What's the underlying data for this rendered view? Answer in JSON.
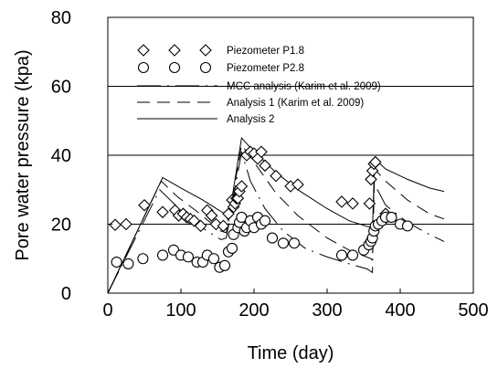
{
  "chart_data": {
    "type": "scatter",
    "title": "",
    "xlabel": "Time (day)",
    "ylabel": "Pore water pressure (kpa)",
    "xlim": [
      0,
      500
    ],
    "ylim": [
      0,
      80
    ],
    "xticks": [
      0,
      100,
      200,
      300,
      400,
      500
    ],
    "yticks": [
      0,
      20,
      40,
      60,
      80
    ],
    "grid": "horizontal lines at 20, 40, 60",
    "legend_position": "top-left",
    "series": [
      {
        "name": "Piezometer P1.8",
        "kind": "markers",
        "marker": "diamond",
        "x": [
          10,
          25,
          50,
          75,
          92,
          97,
          103,
          108,
          113,
          118,
          127,
          136,
          142,
          148,
          158,
          165,
          170,
          172,
          174,
          176,
          178,
          180,
          183,
          190,
          195,
          200,
          205,
          210,
          215,
          230,
          250,
          260,
          320,
          335,
          358,
          360,
          362,
          364,
          366,
          380
        ],
        "y": [
          19.8,
          20,
          25.5,
          23.5,
          24,
          22.5,
          23,
          22,
          21.5,
          21,
          19.5,
          24,
          22.5,
          20,
          19.5,
          23,
          27,
          25,
          26,
          27.5,
          27.5,
          29.5,
          31,
          40,
          41,
          40.5,
          39,
          41,
          37,
          34,
          31,
          31.5,
          26.5,
          26,
          26,
          33,
          35.5,
          37.5,
          38,
          23
        ]
      },
      {
        "name": "Piezometer P2.8",
        "kind": "markers",
        "marker": "circle",
        "x": [
          12,
          28,
          48,
          75,
          90,
          100,
          110,
          122,
          130,
          136,
          145,
          153,
          160,
          165,
          170,
          172,
          178,
          180,
          183,
          187,
          190,
          195,
          200,
          205,
          210,
          215,
          225,
          240,
          255,
          320,
          335,
          350,
          357,
          360,
          362,
          364,
          366,
          370,
          375,
          380,
          388,
          400,
          410
        ],
        "y": [
          9,
          8.5,
          10,
          11,
          12.5,
          11,
          10.5,
          9,
          9,
          11,
          10,
          7.5,
          8,
          12,
          13,
          17,
          19,
          20.5,
          22,
          18,
          19,
          21,
          19,
          22,
          20,
          21,
          16,
          14.5,
          14.5,
          11,
          11,
          12.5,
          14,
          15,
          16,
          18,
          19.5,
          20,
          21,
          22,
          22,
          20,
          19.5
        ]
      },
      {
        "name": "MCC analysis (Karim et al. 2009)",
        "kind": "line",
        "dash": "longdash-dot",
        "x": [
          0,
          71,
          100,
          125,
          155,
          162,
          183,
          195,
          215,
          240,
          270,
          300,
          330,
          355,
          362,
          364,
          380,
          410,
          440,
          460
        ],
        "y": [
          0,
          30,
          24,
          19.5,
          15.5,
          16,
          41,
          32.5,
          24.5,
          18,
          13,
          10.5,
          8.5,
          7,
          6,
          32,
          25.5,
          20.5,
          17,
          15
        ]
      },
      {
        "name": "Analysis 1 (Karim et al. 2009)",
        "kind": "line",
        "dash": "dashed",
        "x": [
          0,
          73,
          95,
          120,
          155,
          162,
          183,
          200,
          230,
          260,
          300,
          330,
          360,
          362,
          365,
          380,
          410,
          440,
          460
        ],
        "y": [
          0,
          32.5,
          28,
          24,
          18,
          17.5,
          43,
          38,
          29,
          22.5,
          16,
          12.5,
          10,
          9.5,
          36,
          32.5,
          27,
          23,
          21.5
        ]
      },
      {
        "name": "Analysis 2",
        "kind": "line",
        "dash": "solid",
        "x": [
          0,
          75,
          100,
          130,
          160,
          165,
          183,
          200,
          230,
          260,
          300,
          330,
          360,
          362,
          365,
          380,
          410,
          440,
          460
        ],
        "y": [
          0,
          33.5,
          30.5,
          27,
          23,
          21,
          45,
          41,
          35,
          30,
          24.5,
          21,
          19,
          18,
          39,
          36,
          33,
          30.5,
          29.5
        ]
      }
    ]
  }
}
